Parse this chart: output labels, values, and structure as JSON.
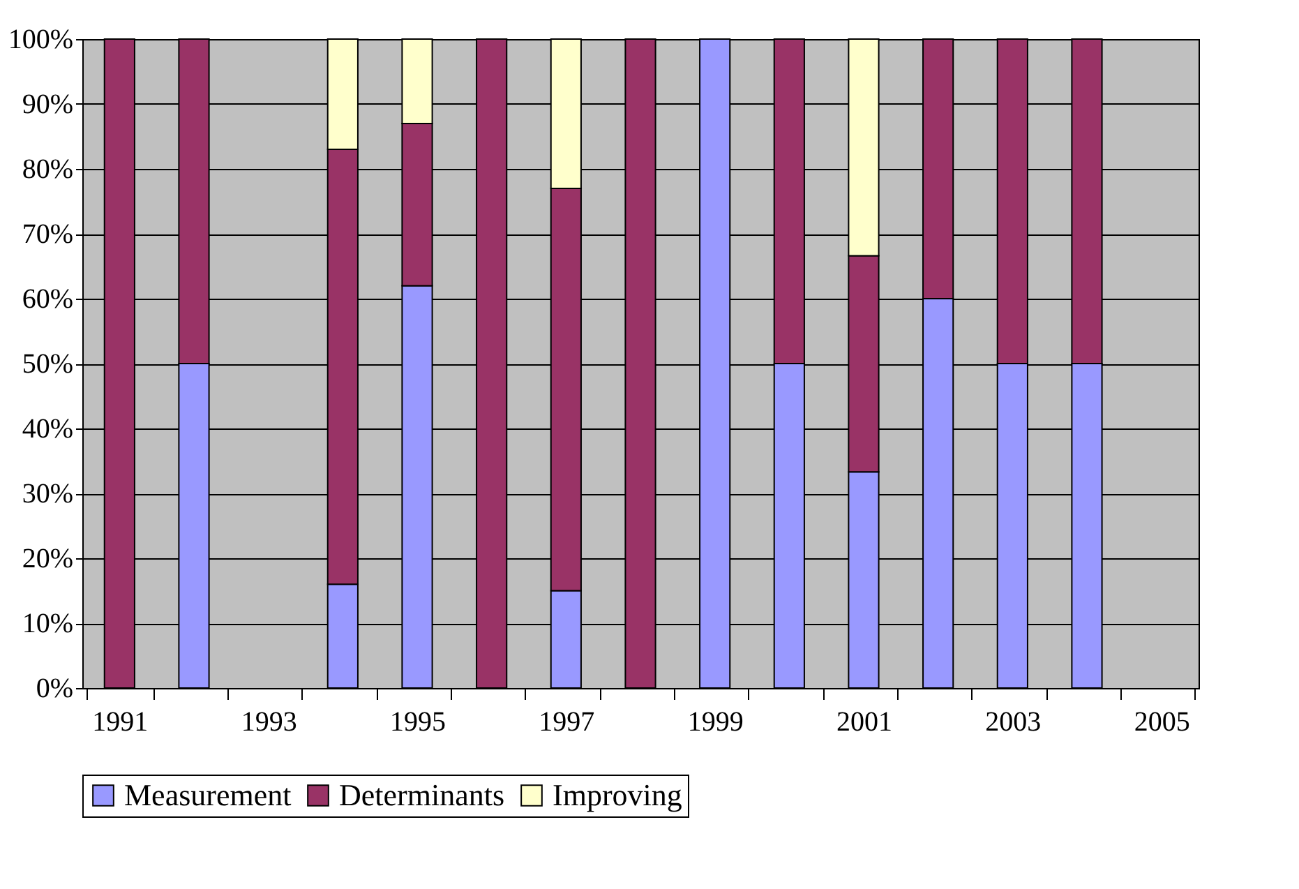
{
  "chart_data": {
    "type": "bar",
    "stacked": true,
    "categories": [
      "1991",
      null,
      "1993",
      null,
      "1995",
      null,
      "1997",
      null,
      "1999",
      null,
      "2001",
      null,
      "2003",
      null,
      "2005"
    ],
    "series": [
      {
        "name": "Measurement",
        "color": "#9999ff",
        "values": [
          0,
          50,
          0,
          16,
          62,
          0,
          15,
          0,
          100,
          50,
          33.3,
          60,
          50,
          50,
          0
        ]
      },
      {
        "name": "Determinants",
        "color": "#993366",
        "values": [
          100,
          50,
          0,
          67,
          25,
          100,
          62,
          100,
          0,
          50,
          33.3,
          40,
          50,
          50,
          0
        ]
      },
      {
        "name": "Improving",
        "color": "#ffffcc",
        "values": [
          0,
          0,
          0,
          17,
          13,
          0,
          23,
          0,
          0,
          0,
          33.4,
          0,
          0,
          0,
          0
        ]
      }
    ],
    "ylim": [
      0,
      100
    ],
    "yticks": [
      {
        "value": 0,
        "label": "0%"
      },
      {
        "value": 10,
        "label": "10%"
      },
      {
        "value": 20,
        "label": "20%"
      },
      {
        "value": 30,
        "label": "30%"
      },
      {
        "value": 40,
        "label": "40%"
      },
      {
        "value": 50,
        "label": "50%"
      },
      {
        "value": 60,
        "label": "60%"
      },
      {
        "value": 70,
        "label": "70%"
      },
      {
        "value": 80,
        "label": "80%"
      },
      {
        "value": 90,
        "label": "90%"
      },
      {
        "value": 100,
        "label": "100%"
      }
    ],
    "grid": "y",
    "legend": "bottom"
  }
}
